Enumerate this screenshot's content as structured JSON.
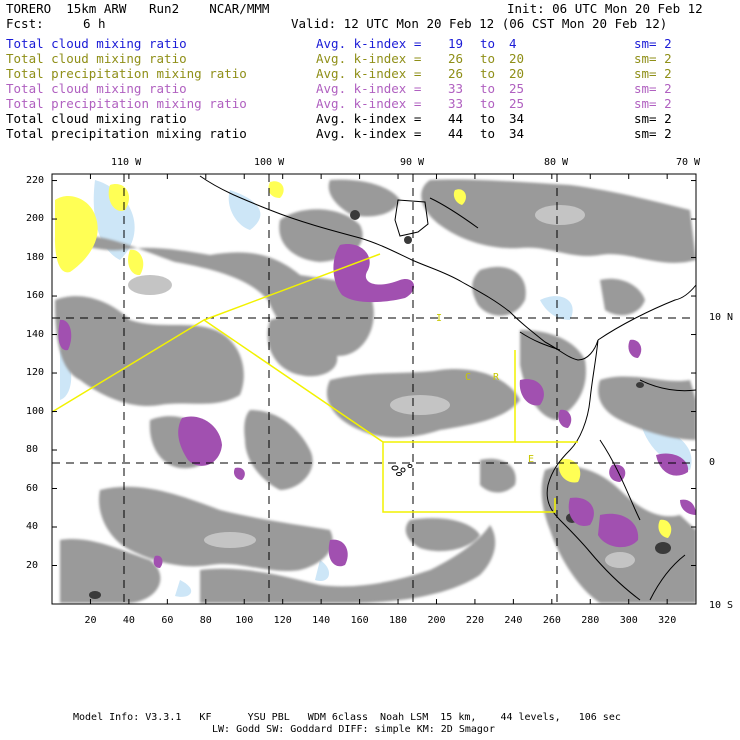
{
  "header": {
    "title": "TORERO  15km ARW   Run2    NCAR/MMM",
    "init": "Init: 06 UTC Mon 20 Feb 12",
    "fcst_label": "Fcst:",
    "fcst_value": "6 h",
    "valid": "Valid: 12 UTC Mon 20 Feb 12 (06 CST Mon 20 Feb 12)"
  },
  "legend": [
    {
      "name": "Total cloud mixing ratio",
      "kindex_label": "Avg. k-index =",
      "k_from": "19",
      "to": "to",
      "k_to": "4",
      "sm": "sm= 2",
      "color": "#1b1bd6"
    },
    {
      "name": "Total cloud mixing ratio",
      "kindex_label": "Avg. k-index =",
      "k_from": "26",
      "to": "to",
      "k_to": "20",
      "sm": "sm= 2",
      "color": "#8f8f18"
    },
    {
      "name": "Total precipitation mixing ratio",
      "kindex_label": "Avg. k-index =",
      "k_from": "26",
      "to": "to",
      "k_to": "20",
      "sm": "sm= 2",
      "color": "#8f8f18"
    },
    {
      "name": "Total cloud mixing ratio",
      "kindex_label": "Avg. k-index =",
      "k_from": "33",
      "to": "to",
      "k_to": "25",
      "sm": "sm= 2",
      "color": "#b060c0"
    },
    {
      "name": "Total precipitation mixing ratio",
      "kindex_label": "Avg. k-index =",
      "k_from": "33",
      "to": "to",
      "k_to": "25",
      "sm": "sm= 2",
      "color": "#b060c0"
    },
    {
      "name": "Total cloud mixing ratio",
      "kindex_label": "Avg. k-index =",
      "k_from": "44",
      "to": "to",
      "k_to": "34",
      "sm": "sm= 2",
      "color": "#000000"
    },
    {
      "name": "Total precipitation mixing ratio",
      "kindex_label": "Avg. k-index =",
      "k_from": "44",
      "to": "to",
      "k_to": "34",
      "sm": "sm= 2",
      "color": "#000000"
    }
  ],
  "map": {
    "longitude_labels": [
      "110 W",
      "100 W",
      "90 W",
      "80 W",
      "70 W"
    ],
    "latitude_labels": [
      "10 N",
      "0",
      "10 S"
    ],
    "y_ticks": [
      "220",
      "200",
      "180",
      "160",
      "140",
      "120",
      "100",
      "80",
      "60",
      "40",
      "20"
    ],
    "x_ticks": [
      "20",
      "40",
      "60",
      "80",
      "100",
      "120",
      "140",
      "160",
      "180",
      "200",
      "220",
      "240",
      "260",
      "280",
      "300",
      "320"
    ],
    "region_labels": [
      "I",
      "C",
      "R",
      "E"
    ],
    "colors": {
      "frame": "#000000",
      "cloud_gray": "#8a8a8a",
      "cloud_gray_light": "#b4b4b4",
      "cloud_dark": "#3a3a3a",
      "purple": "#a150b0",
      "yellow": "#ffff55",
      "light_blue": "#cde6f7",
      "box_yellow": "#f2f200"
    }
  },
  "footer": {
    "line1": "Model Info: V3.3.1   KF      YSU PBL   WDM 6class  Noah LSM  15 km,    44 levels,   106 sec",
    "line2": "LW: Godd SW: Goddard DIFF: simple KM: 2D Smagor"
  }
}
